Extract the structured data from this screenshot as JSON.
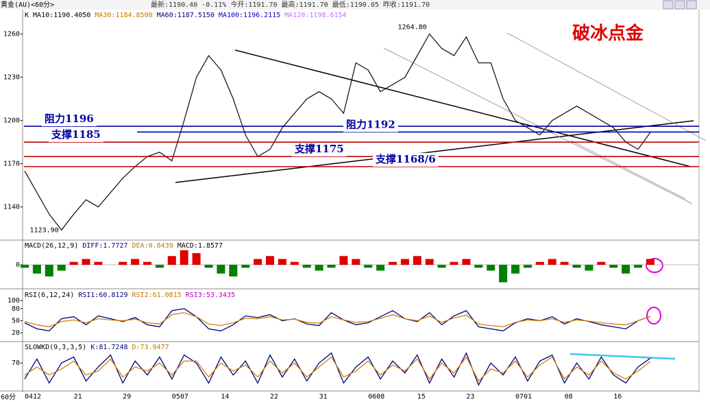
{
  "header": {
    "symbol": "黄金(AU)<60分>",
    "quote": "最新:1190.40 -0.11% 今开:1191.70 最高:1191.70 最低:1190.05 昨收:1191.70",
    "period": "60分"
  },
  "chart_data": [
    {
      "type": "line",
      "title": "破冰点金",
      "panel_label": "K",
      "readouts": [
        {
          "label": "MA10:1190.4050",
          "color": "#000000"
        },
        {
          "label": "MA30:1184.8500",
          "color": "#c07800"
        },
        {
          "label": "MA60:1187.5150",
          "color": "#000080"
        },
        {
          "label": "MA100:1196.2115",
          "color": "#0000c0"
        },
        {
          "label": "MA120:1198.6154",
          "color": "#c070ff"
        }
      ],
      "categories": [
        "0412",
        null,
        null,
        null,
        "21",
        null,
        null,
        null,
        "29",
        null,
        null,
        null,
        "0507",
        null,
        null,
        null,
        "14",
        null,
        null,
        null,
        "22",
        null,
        null,
        null,
        "31",
        null,
        null,
        null,
        "0608",
        null,
        null,
        null,
        "15",
        null,
        null,
        null,
        "23",
        null,
        null,
        null,
        "0701",
        null,
        null,
        null,
        "08",
        null,
        null,
        null,
        "16",
        null,
        null,
        null
      ],
      "series": [
        {
          "color": "#1a1a1a",
          "values": [
            1165,
            1150,
            1135,
            1124,
            1135,
            1145,
            1140,
            1150,
            1160,
            1168,
            1175,
            1178,
            1172,
            1200,
            1230,
            1245,
            1235,
            1215,
            1190,
            1175,
            1180,
            1195,
            1205,
            1215,
            1220,
            1215,
            1205,
            1240,
            1235,
            1220,
            1225,
            1230,
            1245,
            1260,
            1250,
            1245,
            1258,
            1240,
            1240,
            1215,
            1200,
            1195,
            1190,
            1200,
            1205,
            1210,
            1205,
            1200,
            1195,
            1185,
            1180,
            1191.7
          ]
        }
      ],
      "annotations": [
        {
          "value": 1264.8,
          "label": "1264.80"
        },
        {
          "value": 1123.9,
          "label": "1123.90"
        }
      ],
      "levels": [
        {
          "label": "阻力1196",
          "value": 1196,
          "color": "#0000a0"
        },
        {
          "label": "支撑1185",
          "value": 1185,
          "color": "#c00000"
        },
        {
          "label": "支撑1175",
          "value": 1175,
          "color": "#c00000"
        },
        {
          "label": "阻力1192",
          "value": 1192,
          "color": "#0000a0"
        },
        {
          "label": "支撑1168/6",
          "value": 1168,
          "color": "#c00000"
        }
      ],
      "ylim": [
        1117,
        1276
      ],
      "yticks": [
        1140,
        1170,
        1200,
        1230,
        1260
      ]
    },
    {
      "type": "bar",
      "panel_label": "MACD(26,12,9)",
      "readouts": [
        {
          "label": "DIFF:1.7727",
          "color": "#000080"
        },
        {
          "label": "DEA:0.8439",
          "color": "#c07800"
        },
        {
          "label": "MACD:1.8577",
          "color": "#000000"
        }
      ],
      "values": [
        -1,
        -3,
        -4,
        -2,
        1,
        2,
        1,
        0,
        1,
        2,
        1,
        -1,
        3,
        5,
        4,
        -1,
        -3,
        -4,
        -1,
        2,
        3,
        2,
        1,
        -1,
        -2,
        -1,
        3,
        2,
        -1,
        -2,
        1,
        2,
        3,
        2,
        -1,
        1,
        2,
        -1,
        -2,
        -6,
        -3,
        -1,
        1,
        2,
        1,
        -1,
        -2,
        1,
        -1,
        -3,
        -1,
        2
      ],
      "ylim": [
        -8,
        8
      ],
      "yticks": [
        0
      ]
    },
    {
      "type": "line",
      "panel_label": "RSI(6,12,24)",
      "readouts": [
        {
          "label": "RSI1:60.8129",
          "color": "#000080"
        },
        {
          "label": "RSI2:61.0815",
          "color": "#c07800"
        },
        {
          "label": "RSI3:53.3435",
          "color": "#c000c0"
        }
      ],
      "series": [
        {
          "color": "#000080",
          "values": [
            45,
            30,
            25,
            55,
            60,
            40,
            62,
            55,
            48,
            58,
            40,
            35,
            75,
            80,
            60,
            30,
            25,
            40,
            62,
            58,
            65,
            50,
            55,
            42,
            38,
            70,
            52,
            40,
            45,
            60,
            75,
            55,
            48,
            70,
            40,
            62,
            75,
            35,
            30,
            25,
            45,
            55,
            50,
            60,
            42,
            55,
            48,
            40,
            35,
            30,
            50,
            61
          ]
        },
        {
          "color": "#d08000",
          "values": [
            48,
            40,
            35,
            48,
            52,
            45,
            55,
            52,
            50,
            54,
            45,
            42,
            65,
            70,
            60,
            42,
            38,
            45,
            56,
            55,
            60,
            52,
            54,
            46,
            44,
            60,
            52,
            46,
            48,
            56,
            65,
            55,
            50,
            62,
            46,
            57,
            64,
            42,
            38,
            35,
            46,
            52,
            50,
            55,
            46,
            52,
            49,
            45,
            42,
            40,
            50,
            61
          ]
        }
      ],
      "ylim": [
        0,
        124
      ],
      "yticks": [
        20,
        50,
        80,
        100
      ]
    },
    {
      "type": "line",
      "panel_label": "SLOWKD(9,3,3,5)",
      "readouts": [
        {
          "label": "K:81.7248",
          "color": "#000080"
        },
        {
          "label": "D:73.9477",
          "color": "#c07800"
        }
      ],
      "series": [
        {
          "color": "#000080",
          "values": [
            30,
            80,
            20,
            70,
            85,
            25,
            60,
            90,
            20,
            75,
            40,
            85,
            30,
            90,
            70,
            20,
            85,
            40,
            75,
            20,
            90,
            35,
            80,
            25,
            70,
            95,
            20,
            60,
            85,
            30,
            75,
            45,
            90,
            20,
            80,
            35,
            95,
            15,
            70,
            40,
            85,
            25,
            75,
            90,
            20,
            70,
            30,
            85,
            40,
            20,
            60,
            82
          ]
        },
        {
          "color": "#d08000",
          "values": [
            40,
            60,
            40,
            55,
            75,
            40,
            50,
            80,
            35,
            60,
            50,
            70,
            40,
            75,
            75,
            35,
            70,
            50,
            65,
            35,
            75,
            45,
            70,
            35,
            60,
            85,
            35,
            50,
            75,
            40,
            65,
            50,
            80,
            30,
            70,
            45,
            85,
            25,
            55,
            45,
            75,
            35,
            65,
            85,
            30,
            60,
            40,
            75,
            45,
            30,
            50,
            74
          ]
        }
      ],
      "ylim": [
        0,
        120
      ],
      "yticks": [
        70
      ]
    }
  ]
}
